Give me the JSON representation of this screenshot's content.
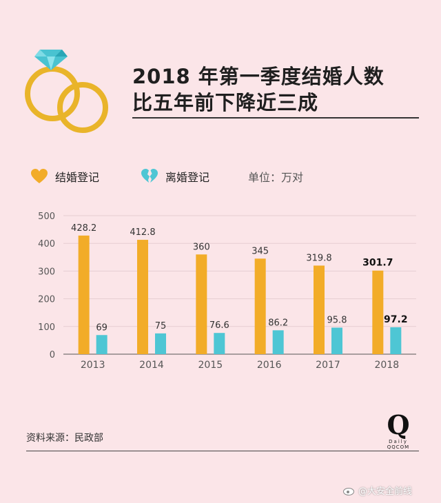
{
  "title_line1": "2018 年第一季度结婚人数",
  "title_line2": "比五年前下降近三成",
  "legend": {
    "marriage": "结婚登记",
    "divorce": "离婚登记",
    "unit": "单位：万对"
  },
  "source": "资料来源：民政部",
  "brand": {
    "letter": "Q",
    "line1": "Daily",
    "line2": "QQCOM"
  },
  "watermark": "@大安全前线",
  "colors": {
    "marriage": "#f2ac28",
    "divorce": "#4ec6d4",
    "background": "#fbe5e8",
    "ring": "#e9b42a",
    "diamond": "#49c3d1"
  },
  "icons": {
    "logo": "ring-icon",
    "marriage": "heart-icon",
    "divorce": "broken-heart-icon"
  },
  "chart_data": {
    "type": "bar",
    "categories": [
      "2013",
      "2014",
      "2015",
      "2016",
      "2017",
      "2018"
    ],
    "series": [
      {
        "name": "结婚登记",
        "values": [
          428.2,
          412.8,
          360,
          345,
          319.8,
          301.7
        ],
        "labels": [
          "428.2",
          "412.8",
          "360",
          "345",
          "319.8",
          "301.7"
        ]
      },
      {
        "name": "离婚登记",
        "values": [
          69,
          75,
          76.6,
          86.2,
          95.8,
          97.2
        ],
        "labels": [
          "69",
          "75",
          "76.6",
          "86.2",
          "95.8",
          "97.2"
        ]
      }
    ],
    "ylim": [
      0,
      500
    ],
    "yticks": [
      "0",
      "100",
      "200",
      "300",
      "400",
      "500"
    ],
    "grid": true,
    "highlight_category": "2018"
  }
}
